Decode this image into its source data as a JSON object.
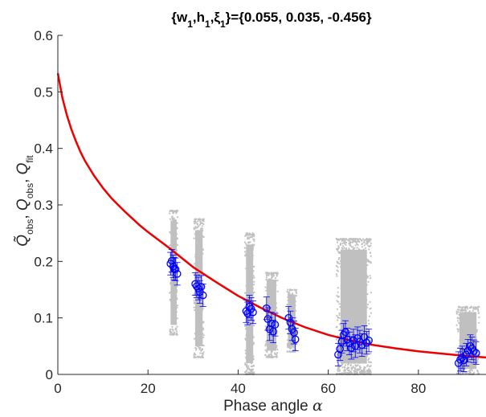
{
  "chart_data": {
    "type": "scatter",
    "title": "{w₁,h₁,ξ₁}={0.055, 0.035, -0.456}",
    "title_parts": {
      "prefix": "{w",
      "sub1": "1",
      "mid1": ",h",
      "sub2": "1",
      "mid2": ",ξ",
      "sub3": "1",
      "suffix": "}={0.055, 0.035, -0.456}"
    },
    "xlabel": "Phase angle α",
    "xlabel_parts": {
      "text": "Phase angle ",
      "symbol": "α"
    },
    "ylabel": "Q̃_obs, Q_obs, Q_fit",
    "ylabel_parts": [
      {
        "main": "Q̃",
        "sub": "obs"
      },
      {
        "main": "Q",
        "sub": "obs"
      },
      {
        "main": "Q",
        "sub": "fit"
      }
    ],
    "xlim": [
      0,
      95
    ],
    "ylim": [
      0,
      0.6
    ],
    "xticks": [
      "0",
      "20",
      "40",
      "60",
      "80"
    ],
    "yticks": [
      "0",
      "0.1",
      "0.2",
      "0.3",
      "0.4",
      "0.5",
      "0.6"
    ],
    "grid": false,
    "colors": {
      "raw": "#c0c0c0",
      "obs": "#0000ff",
      "fit": "#ee0000",
      "axis": "#262626"
    },
    "raw_clusters": [
      {
        "x_range": [
          24.8,
          26.6
        ],
        "y_range": [
          0.07,
          0.29
        ]
      },
      {
        "x_range": [
          30.2,
          32.4
        ],
        "y_range": [
          0.03,
          0.275
        ]
      },
      {
        "x_range": [
          41.5,
          43.6
        ],
        "y_range": [
          0.0,
          0.25
        ]
      },
      {
        "x_range": [
          46.0,
          48.8
        ],
        "y_range": [
          0.03,
          0.18
        ]
      },
      {
        "x_range": [
          50.8,
          53.0
        ],
        "y_range": [
          0.04,
          0.15
        ]
      },
      {
        "x_range": [
          61.8,
          69.5
        ],
        "y_range": [
          0.0,
          0.24
        ]
      },
      {
        "x_range": [
          88.5,
          93.5
        ],
        "y_range": [
          0.0,
          0.12
        ]
      }
    ],
    "obs_points": [
      {
        "x": 25.0,
        "y": 0.196
      },
      {
        "x": 25.3,
        "y": 0.201
      },
      {
        "x": 25.6,
        "y": 0.191
      },
      {
        "x": 25.8,
        "y": 0.187
      },
      {
        "x": 26.1,
        "y": 0.186
      },
      {
        "x": 26.5,
        "y": 0.178
      },
      {
        "x": 30.5,
        "y": 0.16
      },
      {
        "x": 30.8,
        "y": 0.156
      },
      {
        "x": 31.2,
        "y": 0.152
      },
      {
        "x": 31.5,
        "y": 0.146
      },
      {
        "x": 31.8,
        "y": 0.155
      },
      {
        "x": 32.2,
        "y": 0.14
      },
      {
        "x": 41.8,
        "y": 0.112
      },
      {
        "x": 42.1,
        "y": 0.108
      },
      {
        "x": 42.5,
        "y": 0.12
      },
      {
        "x": 42.9,
        "y": 0.116
      },
      {
        "x": 43.3,
        "y": 0.11
      },
      {
        "x": 46.3,
        "y": 0.117
      },
      {
        "x": 46.6,
        "y": 0.098
      },
      {
        "x": 47.0,
        "y": 0.08
      },
      {
        "x": 47.4,
        "y": 0.09
      },
      {
        "x": 47.8,
        "y": 0.076
      },
      {
        "x": 48.2,
        "y": 0.088
      },
      {
        "x": 51.2,
        "y": 0.1
      },
      {
        "x": 51.6,
        "y": 0.092
      },
      {
        "x": 52.0,
        "y": 0.08
      },
      {
        "x": 52.4,
        "y": 0.074
      },
      {
        "x": 52.7,
        "y": 0.062
      },
      {
        "x": 62.2,
        "y": 0.035
      },
      {
        "x": 62.6,
        "y": 0.045
      },
      {
        "x": 63.0,
        "y": 0.058
      },
      {
        "x": 63.4,
        "y": 0.07
      },
      {
        "x": 63.8,
        "y": 0.075
      },
      {
        "x": 64.2,
        "y": 0.062
      },
      {
        "x": 64.7,
        "y": 0.055
      },
      {
        "x": 65.1,
        "y": 0.047
      },
      {
        "x": 65.6,
        "y": 0.06
      },
      {
        "x": 66.0,
        "y": 0.05
      },
      {
        "x": 66.5,
        "y": 0.064
      },
      {
        "x": 67.0,
        "y": 0.058
      },
      {
        "x": 67.5,
        "y": 0.052
      },
      {
        "x": 68.0,
        "y": 0.066
      },
      {
        "x": 68.5,
        "y": 0.056
      },
      {
        "x": 69.0,
        "y": 0.06
      },
      {
        "x": 88.9,
        "y": 0.02
      },
      {
        "x": 89.3,
        "y": 0.026
      },
      {
        "x": 89.7,
        "y": 0.03
      },
      {
        "x": 90.1,
        "y": 0.025
      },
      {
        "x": 90.6,
        "y": 0.035
      },
      {
        "x": 91.0,
        "y": 0.042
      },
      {
        "x": 91.5,
        "y": 0.05
      },
      {
        "x": 91.9,
        "y": 0.046
      },
      {
        "x": 92.3,
        "y": 0.041
      },
      {
        "x": 92.8,
        "y": 0.038
      }
    ],
    "obs_error": 0.02,
    "fit_curve": {
      "x": [
        0,
        1,
        2,
        3,
        4,
        5,
        6,
        8,
        10,
        12,
        15,
        18,
        20,
        25,
        30,
        35,
        40,
        45,
        50,
        55,
        60,
        65,
        70,
        75,
        80,
        85,
        90,
        95
      ],
      "y": [
        0.533,
        0.49,
        0.459,
        0.434,
        0.413,
        0.394,
        0.378,
        0.352,
        0.33,
        0.311,
        0.287,
        0.265,
        0.252,
        0.222,
        0.19,
        0.164,
        0.139,
        0.118,
        0.099,
        0.083,
        0.07,
        0.06,
        0.052,
        0.046,
        0.041,
        0.037,
        0.033,
        0.03
      ]
    }
  }
}
